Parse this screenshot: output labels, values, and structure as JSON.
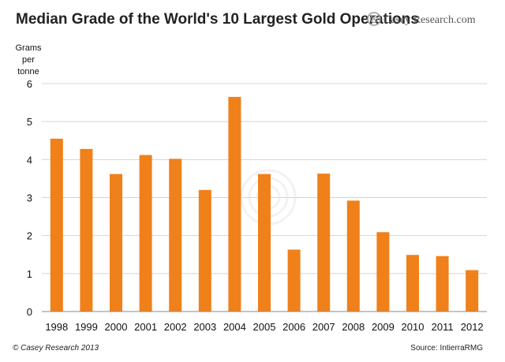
{
  "header": {
    "title": "Median Grade of the World's 10 Largest Gold Operations",
    "brand": "Casey Research.com"
  },
  "footer": {
    "copyright": "© Casey Research 2013",
    "source": "Source: IntierraRMG"
  },
  "colors": {
    "bar": "#f0801a",
    "grid": "#d4d4d4",
    "axis": "#8a8a8a",
    "brand_accent": "#e07020"
  },
  "icons": [
    "casey-research-logo-icon",
    "casey-watermark-icon"
  ],
  "chart_data": {
    "type": "bar",
    "title": "Median Grade of the World's 10 Largest Gold Operations",
    "ylabel": [
      "Grams",
      "per",
      "tonne"
    ],
    "xlabel": "",
    "ylim": [
      0,
      6
    ],
    "yticks": [
      0,
      1,
      2,
      3,
      4,
      5,
      6
    ],
    "grid": true,
    "legend": "none",
    "categories": [
      "1998",
      "1999",
      "2000",
      "2001",
      "2002",
      "2003",
      "2004",
      "2005",
      "2006",
      "2007",
      "2008",
      "2009",
      "2010",
      "2011",
      "2012"
    ],
    "values": [
      4.55,
      4.28,
      3.62,
      4.12,
      4.02,
      3.2,
      5.65,
      3.62,
      1.63,
      3.63,
      2.92,
      2.09,
      1.49,
      1.46,
      1.09
    ]
  }
}
